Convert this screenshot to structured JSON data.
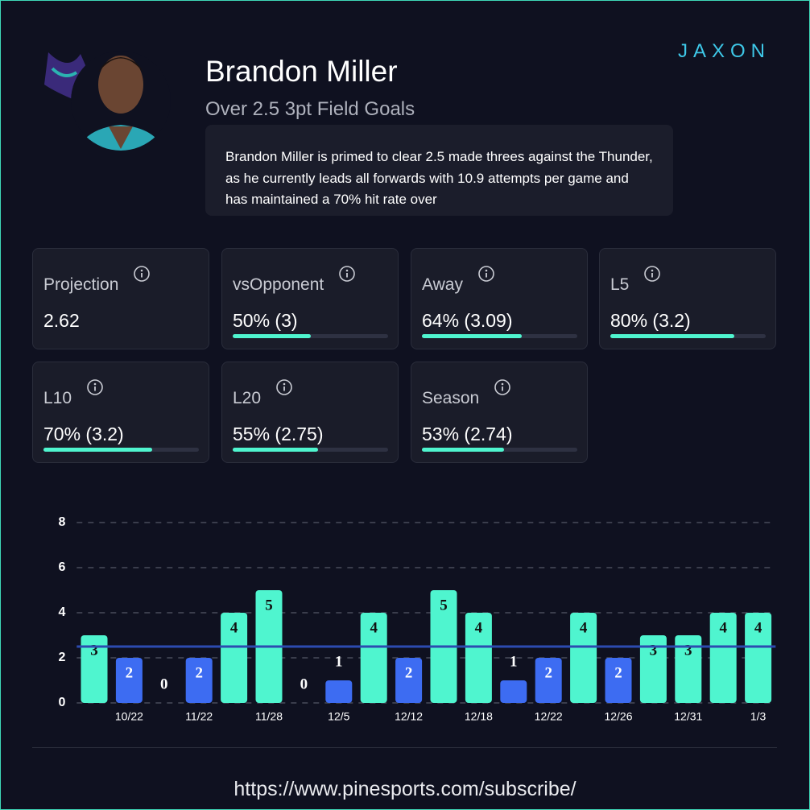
{
  "header": {
    "logo": "JAXON",
    "name": "Brandon Miller",
    "subtitle": "Over 2.5 3pt Field Goals",
    "description": "Brandon Miller is primed to clear 2.5 made threes against the Thunder, as he currently leads all forwards with 10.9 attempts per game and has maintained a 70% hit rate over"
  },
  "stats": [
    {
      "label": "Projection",
      "value": "2.62"
    },
    {
      "label": "vsOpponent",
      "value": "50% (3)",
      "percent": 50
    },
    {
      "label": "Away",
      "value": "64% (3.09)",
      "percent": 64
    },
    {
      "label": "L5",
      "value": "80% (3.2)",
      "percent": 80
    },
    {
      "label": "L10",
      "value": "70% (3.2)",
      "percent": 70
    },
    {
      "label": "L20",
      "value": "55% (2.75)",
      "percent": 55
    },
    {
      "label": "Season",
      "value": "53% (2.74)",
      "percent": 53
    }
  ],
  "chart_data": {
    "type": "bar",
    "categories": [
      null,
      "10/22",
      null,
      "11/22",
      null,
      "11/28",
      null,
      "12/5",
      null,
      "12/12",
      null,
      "12/18",
      null,
      "12/22",
      null,
      "12/26",
      null,
      "12/31",
      null,
      "1/3"
    ],
    "values": [
      3,
      2,
      0,
      2,
      4,
      5,
      0,
      1,
      4,
      2,
      5,
      4,
      1,
      2,
      4,
      2,
      3,
      3,
      4,
      4
    ],
    "ylim": [
      0,
      8
    ],
    "yticks": [
      0,
      2,
      4,
      6,
      8
    ],
    "grid": true,
    "line": 2.5,
    "over_color": "#4ff5cf",
    "under_color": "#3d6cf2",
    "line_color": "#2c4bb0"
  },
  "footer": {
    "url": "https://www.pinesports.com/subscribe/"
  }
}
